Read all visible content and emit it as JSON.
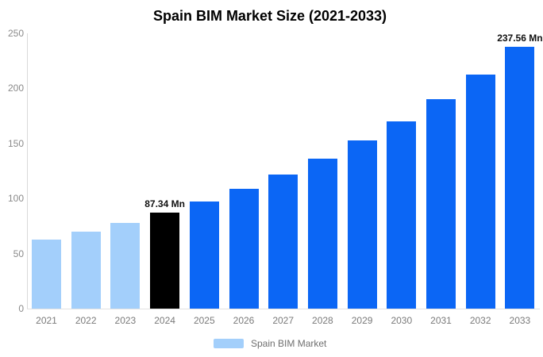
{
  "title": "Spain BIM Market Size (2021-2033)",
  "chart_data": {
    "type": "bar",
    "title": "Spain BIM Market Size (2021-2033)",
    "xlabel": "",
    "ylabel": "",
    "ylim": [
      0,
      250
    ],
    "yticks": [
      0,
      50,
      100,
      150,
      200,
      250
    ],
    "grid": false,
    "categories": [
      "2021",
      "2022",
      "2023",
      "2024",
      "2025",
      "2026",
      "2027",
      "2028",
      "2029",
      "2030",
      "2031",
      "2032",
      "2033"
    ],
    "series": [
      {
        "name": "Spain BIM Market",
        "values": [
          62.5,
          69.9,
          78.1,
          87.34,
          97.6,
          109.1,
          122.0,
          136.3,
          152.4,
          170.3,
          190.4,
          212.8,
          237.56
        ]
      }
    ],
    "bar_roles": [
      "historical",
      "historical",
      "historical",
      "base",
      "forecast",
      "forecast",
      "forecast",
      "forecast",
      "forecast",
      "forecast",
      "forecast",
      "forecast",
      "forecast"
    ],
    "annotations": [
      {
        "category": "2024",
        "label": "87.34 Mn"
      },
      {
        "category": "2033",
        "label": "237.56 Mn"
      }
    ],
    "legend": {
      "label": "Spain BIM Market",
      "position": "bottom",
      "swatch_color": "#a3cffb"
    }
  },
  "colors": {
    "historical_bar": "#a3cffb",
    "base_bar": "#000000",
    "forecast_bar": "#0b66f5",
    "axis_line": "#d9d9d9",
    "tick_label": "#7a7a7a",
    "value_label": "#111111",
    "background": "#ffffff"
  }
}
